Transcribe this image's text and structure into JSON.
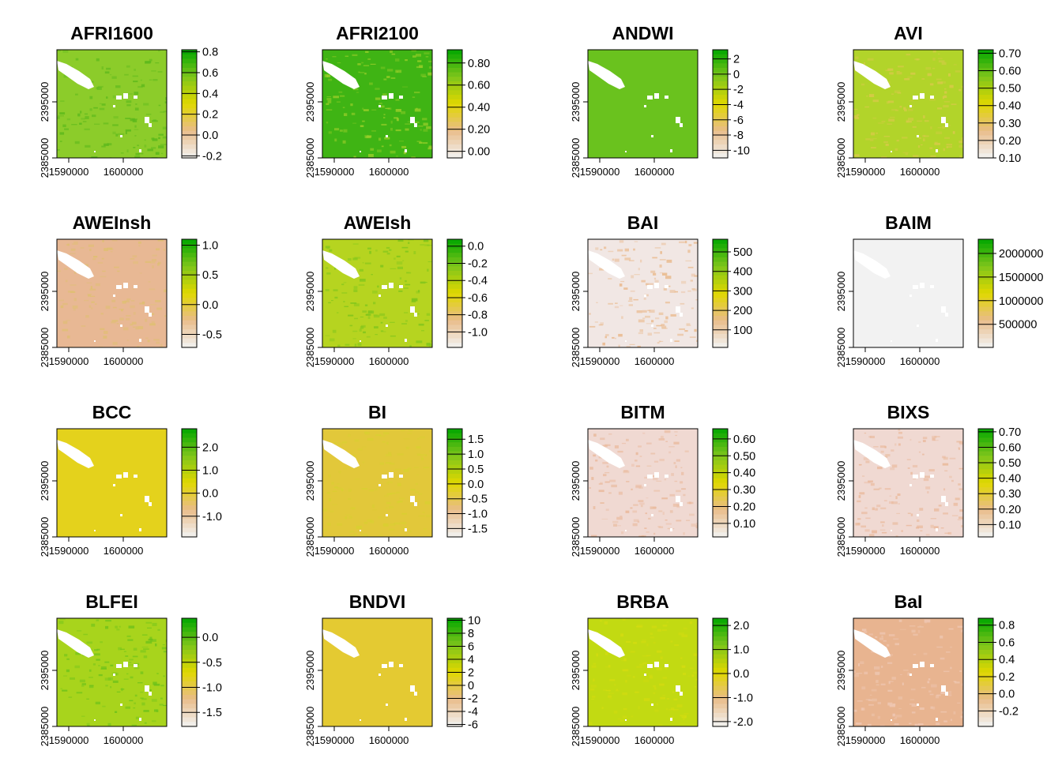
{
  "x_ticks": [
    "1590000",
    "1600000"
  ],
  "y_ticks": [
    "2385000",
    "2395000"
  ],
  "palette": {
    "lo": "#f2f2f2",
    "low_mid": "#e9bc8a",
    "mid": "#e0d800",
    "high_mid": "#7ec51b",
    "hi": "#00a600"
  },
  "chart_data": [
    {
      "type": "heatmap",
      "title": "AFRI1600",
      "legend_ticks": [
        "0.8",
        "0.6",
        "0.4",
        "0.2",
        "0.0",
        "-0.2"
      ],
      "legend_values": [
        0.8,
        0.6,
        0.4,
        0.2,
        0.0,
        -0.2
      ],
      "range": [
        -0.22,
        0.82
      ],
      "base_color": "#8ccc2a",
      "speckle": "#5bb81b"
    },
    {
      "type": "heatmap",
      "title": "AFRI2100",
      "legend_ticks": [
        "0.80",
        "0.60",
        "0.40",
        "0.20",
        "0.00"
      ],
      "legend_values": [
        0.8,
        0.6,
        0.4,
        0.2,
        0.0
      ],
      "range": [
        -0.06,
        0.92
      ],
      "base_color": "#3fb414",
      "speckle": "#9ccf2a"
    },
    {
      "type": "heatmap",
      "title": "ANDWI",
      "legend_ticks": [
        "2",
        "0",
        "-2",
        "-4",
        "-6",
        "-8",
        "-10"
      ],
      "legend_values": [
        2,
        0,
        -2,
        -4,
        -6,
        -8,
        -10
      ],
      "range": [
        -11,
        3.2
      ],
      "base_color": "#6ac21e",
      "speckle": "#6ac21e"
    },
    {
      "type": "heatmap",
      "title": "AVI",
      "legend_ticks": [
        "0.70",
        "0.60",
        "0.50",
        "0.40",
        "0.30",
        "0.20",
        "0.10"
      ],
      "legend_values": [
        0.7,
        0.6,
        0.5,
        0.4,
        0.3,
        0.2,
        0.1
      ],
      "range": [
        0.1,
        0.72
      ],
      "base_color": "#b2d42a",
      "speckle": "#d9c94a"
    },
    {
      "type": "heatmap",
      "title": "AWEInsh",
      "legend_ticks": [
        "1.0",
        "0.5",
        "0.0",
        "-0.5"
      ],
      "legend_values": [
        1.0,
        0.5,
        0.0,
        -0.5
      ],
      "range": [
        -0.72,
        1.1
      ],
      "base_color": "#e8b894",
      "speckle": "#dfc070"
    },
    {
      "type": "heatmap",
      "title": "AWEIsh",
      "legend_ticks": [
        "0.0",
        "-0.2",
        "-0.4",
        "-0.6",
        "-0.8",
        "-1.0"
      ],
      "legend_values": [
        0.0,
        -0.2,
        -0.4,
        -0.6,
        -0.8,
        -1.0
      ],
      "range": [
        -1.18,
        0.08
      ],
      "base_color": "#b6d420",
      "speckle": "#7ec51b"
    },
    {
      "type": "heatmap",
      "title": "BAI",
      "legend_ticks": [
        "500",
        "400",
        "300",
        "200",
        "100"
      ],
      "legend_values": [
        500,
        400,
        300,
        200,
        100
      ],
      "range": [
        10,
        565
      ],
      "base_color": "#f1e7e4",
      "speckle": "#e9b88a"
    },
    {
      "type": "heatmap",
      "title": "BAIM",
      "legend_ticks": [
        "2000000",
        "1500000",
        "1000000",
        "500000"
      ],
      "legend_values": [
        2000000,
        1500000,
        1000000,
        500000
      ],
      "range": [
        10000,
        2300000
      ],
      "base_color": "#f2f2f2",
      "speckle": "#f2f2f2"
    },
    {
      "type": "heatmap",
      "title": "BCC",
      "legend_ticks": [
        "2.0",
        "1.0",
        "0.0",
        "-1.0"
      ],
      "legend_values": [
        2.0,
        1.0,
        0.0,
        -1.0
      ],
      "range": [
        -1.9,
        2.8
      ],
      "base_color": "#e4d21c",
      "speckle": "#e4d21c"
    },
    {
      "type": "heatmap",
      "title": "BI",
      "legend_ticks": [
        "1.5",
        "1.0",
        "0.5",
        "0.0",
        "-0.5",
        "-1.0",
        "-1.5"
      ],
      "legend_values": [
        1.5,
        1.0,
        0.5,
        0.0,
        -0.5,
        -1.0,
        -1.5
      ],
      "range": [
        -1.78,
        1.85
      ],
      "base_color": "#e2c83a",
      "speckle": "#d9d030"
    },
    {
      "type": "heatmap",
      "title": "BITM",
      "legend_ticks": [
        "0.60",
        "0.50",
        "0.40",
        "0.30",
        "0.20",
        "0.10"
      ],
      "legend_values": [
        0.6,
        0.5,
        0.4,
        0.3,
        0.2,
        0.1
      ],
      "range": [
        0.02,
        0.66
      ],
      "base_color": "#f0d9d2",
      "speckle": "#e9b89a"
    },
    {
      "type": "heatmap",
      "title": "BIXS",
      "legend_ticks": [
        "0.70",
        "0.60",
        "0.50",
        "0.40",
        "0.30",
        "0.20",
        "0.10"
      ],
      "legend_values": [
        0.7,
        0.6,
        0.5,
        0.4,
        0.3,
        0.2,
        0.1
      ],
      "range": [
        0.02,
        0.72
      ],
      "base_color": "#f0d9d2",
      "speckle": "#e9b89a"
    },
    {
      "type": "heatmap",
      "title": "BLFEI",
      "legend_ticks": [
        "0.0",
        "-0.5",
        "-1.0",
        "-1.5"
      ],
      "legend_values": [
        0.0,
        -0.5,
        -1.0,
        -1.5
      ],
      "range": [
        -1.78,
        0.38
      ],
      "base_color": "#a8d41c",
      "speckle": "#6cc21a"
    },
    {
      "type": "heatmap",
      "title": "BNDVI",
      "legend_ticks": [
        "10",
        "8",
        "6",
        "4",
        "2",
        "0",
        "-2",
        "-4",
        "-6"
      ],
      "legend_values": [
        10,
        8,
        6,
        4,
        2,
        0,
        -2,
        -4,
        -6
      ],
      "range": [
        -6.3,
        10.3
      ],
      "base_color": "#e4ca32",
      "speckle": "#e4ca32"
    },
    {
      "type": "heatmap",
      "title": "BRBA",
      "legend_ticks": [
        "2.0",
        "1.0",
        "0.0",
        "-1.0",
        "-2.0"
      ],
      "legend_values": [
        2.0,
        1.0,
        0.0,
        -1.0,
        -2.0
      ],
      "range": [
        -2.2,
        2.3
      ],
      "base_color": "#c2da12",
      "speckle": "#d4dc10"
    },
    {
      "type": "heatmap",
      "title": "BaI",
      "legend_ticks": [
        "0.8",
        "0.6",
        "0.4",
        "0.2",
        "0.0",
        "-0.2"
      ],
      "legend_values": [
        0.8,
        0.6,
        0.4,
        0.2,
        0.0,
        -0.2
      ],
      "range": [
        -0.38,
        0.88
      ],
      "base_color": "#e8b490",
      "speckle": "#efc8b4"
    }
  ]
}
